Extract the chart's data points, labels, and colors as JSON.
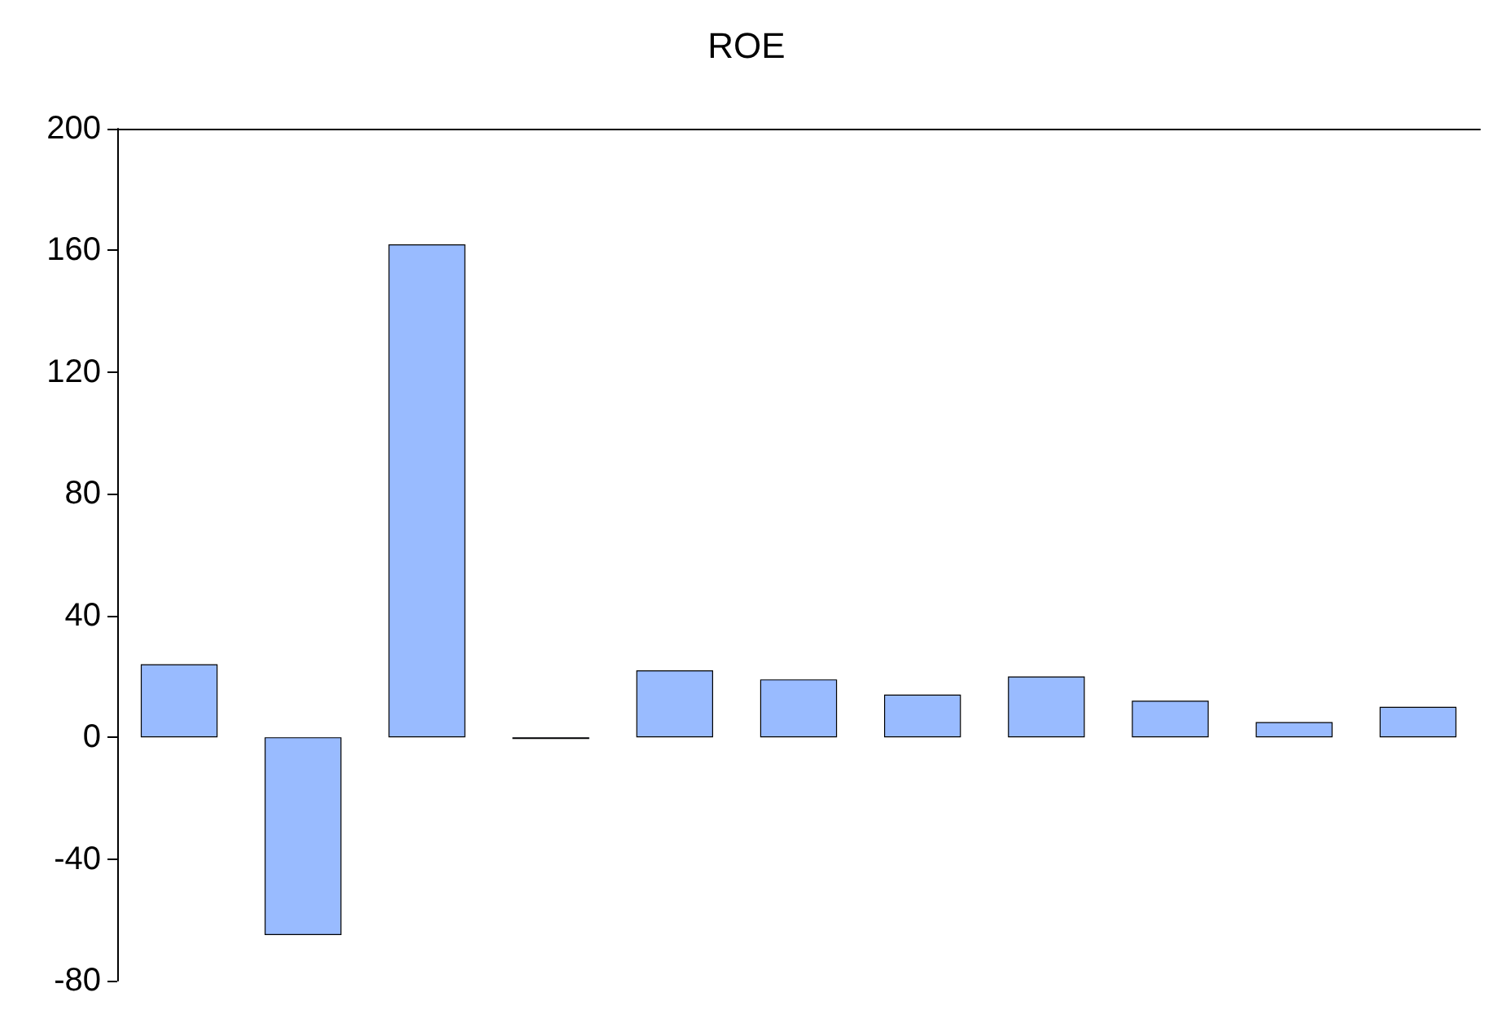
{
  "chart_data": {
    "type": "bar",
    "title": "ROE",
    "categories": [
      null,
      null,
      null,
      null,
      null,
      null,
      null,
      null,
      null,
      null,
      null
    ],
    "values": [
      24,
      -65,
      162,
      -0.5,
      22,
      19,
      14,
      20,
      12,
      5,
      10
    ],
    "color": "#99bbff",
    "ylim": [
      -80,
      200
    ],
    "yticks": [
      -80,
      -40,
      0,
      40,
      80,
      120,
      160,
      200
    ],
    "grid": false
  }
}
